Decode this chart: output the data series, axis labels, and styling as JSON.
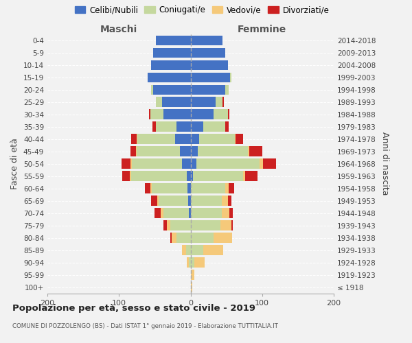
{
  "age_groups": [
    "100+",
    "95-99",
    "90-94",
    "85-89",
    "80-84",
    "75-79",
    "70-74",
    "65-69",
    "60-64",
    "55-59",
    "50-54",
    "45-49",
    "40-44",
    "35-39",
    "30-34",
    "25-29",
    "20-24",
    "15-19",
    "10-14",
    "5-9",
    "0-4"
  ],
  "birth_years": [
    "≤ 1918",
    "1919-1923",
    "1924-1928",
    "1929-1933",
    "1934-1938",
    "1939-1943",
    "1944-1948",
    "1949-1953",
    "1954-1958",
    "1959-1963",
    "1964-1968",
    "1969-1973",
    "1974-1978",
    "1979-1983",
    "1984-1988",
    "1989-1993",
    "1994-1998",
    "1999-2003",
    "2004-2008",
    "2009-2013",
    "2014-2018"
  ],
  "colors": {
    "celibi": "#4472C4",
    "coniugati": "#C5D89E",
    "vedovi": "#F5C97A",
    "divorziati": "#CC2020"
  },
  "males": {
    "celibi": [
      0,
      0,
      0,
      0,
      0,
      0,
      2,
      3,
      4,
      5,
      12,
      15,
      22,
      20,
      38,
      40,
      52,
      60,
      55,
      52,
      48
    ],
    "coniugati": [
      0,
      0,
      2,
      6,
      20,
      28,
      36,
      42,
      50,
      78,
      70,
      60,
      52,
      28,
      18,
      8,
      3,
      0,
      0,
      0,
      0
    ],
    "vedovi": [
      0,
      0,
      3,
      6,
      6,
      5,
      4,
      2,
      2,
      2,
      2,
      1,
      1,
      0,
      0,
      0,
      0,
      0,
      0,
      0,
      0
    ],
    "divorziati": [
      0,
      0,
      0,
      0,
      2,
      5,
      8,
      8,
      8,
      10,
      12,
      8,
      8,
      5,
      2,
      0,
      0,
      0,
      0,
      0,
      0
    ]
  },
  "females": {
    "celibi": [
      0,
      0,
      0,
      0,
      0,
      0,
      0,
      0,
      0,
      3,
      8,
      10,
      12,
      18,
      32,
      35,
      48,
      55,
      52,
      48,
      45
    ],
    "coniugati": [
      0,
      0,
      5,
      18,
      32,
      42,
      44,
      44,
      48,
      70,
      88,
      70,
      50,
      30,
      20,
      10,
      5,
      2,
      0,
      0,
      0
    ],
    "vedovi": [
      2,
      5,
      15,
      28,
      26,
      15,
      10,
      8,
      5,
      3,
      5,
      2,
      1,
      0,
      0,
      0,
      0,
      0,
      0,
      0,
      0
    ],
    "divorziati": [
      0,
      0,
      0,
      0,
      0,
      2,
      5,
      5,
      8,
      18,
      18,
      18,
      10,
      5,
      2,
      2,
      0,
      0,
      0,
      0,
      0
    ]
  },
  "xlim": [
    -200,
    200
  ],
  "xticks": [
    -200,
    -100,
    0,
    100,
    200
  ],
  "xticklabels": [
    "200",
    "100",
    "0",
    "100",
    "200"
  ],
  "title": "Popolazione per età, sesso e stato civile - 2019",
  "subtitle": "COMUNE DI POZZOLENGO (BS) - Dati ISTAT 1° gennaio 2019 - Elaborazione TUTTITALIA.IT",
  "ylabel_left": "Fasce di età",
  "ylabel_right": "Anni di nascita",
  "legend_labels": [
    "Celibi/Nubili",
    "Coniugati/e",
    "Vedovi/e",
    "Divorziati/e"
  ],
  "bg_color": "#f2f2f2",
  "bar_height": 0.82
}
